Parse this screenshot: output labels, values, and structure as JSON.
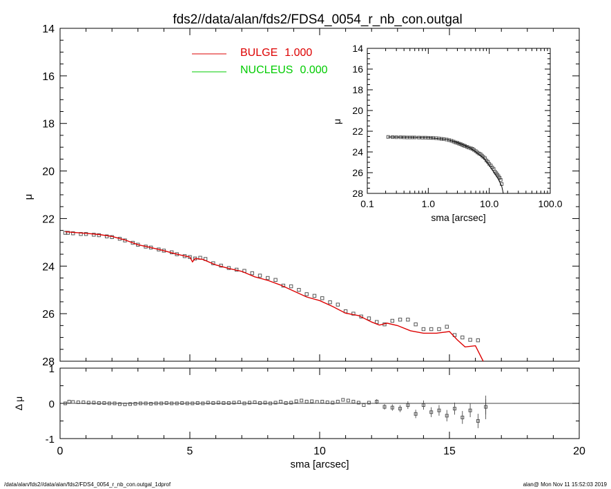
{
  "title": "fds2//data/alan/fds2/FDS4_0054_r_nb_con.outgal",
  "footer_left": "/data/alan/fds2//data/alan/fds2/FDS4_0054_r_nb_con.outgal_1dprof",
  "footer_right": "alan@  Mon Nov 11 15:52:03 2019",
  "colors": {
    "bulge": "#dd0000",
    "nucleus": "#00cc00",
    "points": "#555555"
  },
  "chart_data": [
    {
      "type": "scatter",
      "xlabel": "",
      "ylabel": "μ",
      "xlim": [
        0,
        20
      ],
      "ylim": [
        28,
        14
      ],
      "yticks": [
        14,
        16,
        18,
        20,
        22,
        24,
        26,
        28
      ],
      "legend": [
        {
          "label": "BULGE",
          "value": "1.000",
          "color": "#dd0000"
        },
        {
          "label": "NUCLEUS",
          "value": "0.000",
          "color": "#00cc00"
        }
      ],
      "series": [
        {
          "name": "BULGE",
          "type": "line",
          "x": [
            0.2,
            0.5,
            1.0,
            1.5,
            2.0,
            2.5,
            3.0,
            3.5,
            4.0,
            4.5,
            5.0,
            5.1,
            5.2,
            5.5,
            6.0,
            6.5,
            7.0,
            7.5,
            8.0,
            8.5,
            9.0,
            9.5,
            10.0,
            10.5,
            11.0,
            11.5,
            12.0,
            12.3,
            12.6,
            13.0,
            13.5,
            14.0,
            14.5,
            15.0,
            15.3,
            15.6,
            16.0,
            16.3
          ],
          "y": [
            22.55,
            22.58,
            22.62,
            22.67,
            22.75,
            22.9,
            23.1,
            23.22,
            23.35,
            23.5,
            23.62,
            23.82,
            23.68,
            23.72,
            23.95,
            24.1,
            24.22,
            24.45,
            24.6,
            24.8,
            25.05,
            25.3,
            25.45,
            25.7,
            25.98,
            26.08,
            26.35,
            26.48,
            26.4,
            26.5,
            26.72,
            26.82,
            26.82,
            26.75,
            27.1,
            27.4,
            27.35,
            28.0
          ]
        },
        {
          "name": "",
          "type": "scatter",
          "x": [
            0.2,
            0.3,
            0.5,
            0.8,
            1.0,
            1.3,
            1.5,
            1.8,
            2.0,
            2.3,
            2.5,
            2.8,
            3.0,
            3.3,
            3.5,
            3.8,
            4.0,
            4.3,
            4.5,
            4.8,
            5.0,
            5.2,
            5.4,
            5.6,
            5.9,
            6.2,
            6.5,
            6.8,
            7.1,
            7.4,
            7.7,
            8.0,
            8.3,
            8.6,
            8.9,
            9.2,
            9.5,
            9.8,
            10.1,
            10.4,
            10.7,
            11.0,
            11.3,
            11.6,
            11.9,
            12.2,
            12.5,
            12.8,
            13.1,
            13.4,
            13.7,
            14.0,
            14.3,
            14.6,
            14.9,
            15.2,
            15.5,
            15.8,
            16.1
          ],
          "y": [
            22.6,
            22.6,
            22.62,
            22.65,
            22.65,
            22.68,
            22.7,
            22.75,
            22.78,
            22.85,
            22.92,
            23.02,
            23.1,
            23.18,
            23.22,
            23.3,
            23.35,
            23.42,
            23.5,
            23.58,
            23.62,
            23.68,
            23.65,
            23.7,
            23.88,
            23.98,
            24.08,
            24.15,
            24.2,
            24.3,
            24.4,
            24.5,
            24.58,
            24.82,
            24.85,
            25.0,
            25.18,
            25.25,
            25.35,
            25.52,
            25.62,
            25.9,
            26.0,
            26.12,
            26.2,
            26.35,
            26.45,
            26.3,
            26.25,
            26.25,
            26.45,
            26.65,
            26.65,
            26.65,
            26.55,
            26.9,
            27.0,
            27.1,
            27.12
          ]
        }
      ]
    },
    {
      "type": "scatter",
      "xlabel": "sma [arcsec]",
      "ylabel": "Δ μ",
      "xlim": [
        0,
        20
      ],
      "ylim": [
        -1,
        1
      ],
      "xticks": [
        0,
        5,
        10,
        15,
        20
      ],
      "yticks": [
        -1,
        0,
        1
      ],
      "series": [
        {
          "name": "",
          "type": "scatter",
          "x": [
            0.2,
            0.35,
            0.5,
            0.7,
            0.9,
            1.1,
            1.3,
            1.5,
            1.7,
            1.9,
            2.1,
            2.3,
            2.5,
            2.7,
            2.9,
            3.1,
            3.3,
            3.5,
            3.7,
            3.9,
            4.1,
            4.3,
            4.5,
            4.7,
            4.9,
            5.1,
            5.3,
            5.5,
            5.7,
            5.9,
            6.1,
            6.3,
            6.5,
            6.7,
            6.9,
            7.1,
            7.3,
            7.5,
            7.7,
            7.9,
            8.1,
            8.3,
            8.5,
            8.7,
            8.9,
            9.1,
            9.3,
            9.5,
            9.7,
            9.9,
            10.1,
            10.3,
            10.5,
            10.7,
            10.9,
            11.1,
            11.3,
            11.5,
            11.7,
            11.9,
            12.2,
            12.5,
            12.8,
            13.1,
            13.4,
            13.7,
            14.0,
            14.3,
            14.6,
            14.9,
            15.2,
            15.5,
            15.8,
            16.1,
            16.4
          ],
          "y": [
            0.0,
            0.05,
            0.04,
            0.03,
            0.03,
            0.02,
            0.02,
            0.01,
            0.01,
            0.0,
            0.0,
            -0.02,
            -0.03,
            -0.02,
            -0.01,
            0.0,
            0.0,
            -0.01,
            0.0,
            0.0,
            0.01,
            0.0,
            0.0,
            0.01,
            0.0,
            0.0,
            0.01,
            0.0,
            0.02,
            0.01,
            0.02,
            0.01,
            0.01,
            0.02,
            0.03,
            0.0,
            0.02,
            0.03,
            0.01,
            0.02,
            0.0,
            0.02,
            0.05,
            0.01,
            0.02,
            0.06,
            0.08,
            0.05,
            0.06,
            0.04,
            0.05,
            0.03,
            0.02,
            0.05,
            0.1,
            0.08,
            0.05,
            0.02,
            -0.05,
            0.02,
            0.05,
            -0.1,
            -0.12,
            -0.15,
            -0.05,
            -0.3,
            -0.05,
            -0.25,
            -0.2,
            -0.35,
            -0.15,
            -0.4,
            -0.2,
            -0.5,
            -0.1
          ]
        }
      ]
    },
    {
      "type": "scatter",
      "xlabel": "sma [arcsec]",
      "ylabel": "μ",
      "xscale": "log",
      "xlim": [
        0.1,
        100.0
      ],
      "ylim": [
        28,
        14
      ],
      "xticks": [
        "0.1",
        "1.0",
        "10.0",
        "100.0"
      ],
      "yticks": [
        14,
        16,
        18,
        20,
        22,
        24,
        26,
        28
      ],
      "series": [
        {
          "name": "",
          "type": "line",
          "x": [
            0.22,
            0.5,
            1.0,
            2.0,
            3.0,
            4.0,
            5.0,
            6.0,
            8.0,
            10.0,
            12.0,
            14.0,
            16.0,
            17.0
          ],
          "y": [
            22.55,
            22.58,
            22.62,
            22.78,
            23.1,
            23.4,
            23.65,
            24.0,
            24.55,
            25.3,
            26.0,
            26.6,
            27.3,
            28.0
          ]
        },
        {
          "name": "",
          "type": "scatter",
          "x": [
            0.22,
            0.26,
            0.3,
            0.35,
            0.4,
            0.45,
            0.5,
            0.55,
            0.6,
            0.7,
            0.8,
            0.9,
            1.0,
            1.1,
            1.2,
            1.35,
            1.5,
            1.65,
            1.8,
            2.0,
            2.2,
            2.4,
            2.6,
            2.8,
            3.0,
            3.2,
            3.4,
            3.6,
            3.8,
            4.0,
            4.3,
            4.6,
            5.0,
            5.3,
            5.6,
            6.0,
            6.4,
            6.8,
            7.2,
            7.6,
            8.0,
            8.5,
            9.0,
            9.5,
            10.0,
            10.6,
            11.2,
            11.8,
            12.4,
            13.0,
            13.6,
            14.2,
            14.8,
            15.4,
            16.0
          ],
          "y": [
            22.55,
            22.57,
            22.58,
            22.58,
            22.59,
            22.6,
            22.6,
            22.6,
            22.6,
            22.61,
            22.62,
            22.62,
            22.63,
            22.64,
            22.65,
            22.67,
            22.7,
            22.74,
            22.76,
            22.8,
            22.86,
            22.92,
            23.0,
            23.08,
            23.12,
            23.2,
            23.25,
            23.32,
            23.38,
            23.42,
            23.5,
            23.58,
            23.65,
            23.7,
            23.8,
            23.92,
            24.05,
            24.15,
            24.22,
            24.35,
            24.48,
            24.6,
            24.82,
            24.95,
            25.15,
            25.3,
            25.5,
            25.65,
            25.9,
            26.05,
            26.2,
            26.35,
            26.5,
            26.7,
            27.1
          ]
        }
      ]
    }
  ]
}
